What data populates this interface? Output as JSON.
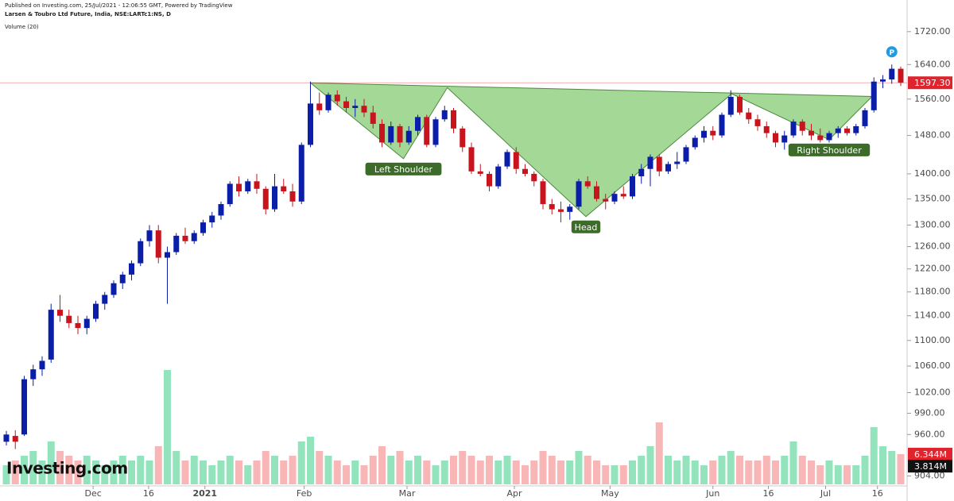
{
  "chart_data": {
    "type": "candlestick",
    "published": "Published on Investing.com, 25/Jul/2021 - 12:06:55 GMT, Powered by TradingView",
    "title": "Larsen & Toubro Ltd Future, India, NSE:LARTc1:NS, D",
    "volume_title": "Volume (20)",
    "logo": "Investing.com",
    "marker": "P",
    "log_scale": true,
    "ylim": [
      883,
      1780
    ],
    "yticks": [
      {
        "value": 1720,
        "label": "1720.00"
      },
      {
        "value": 1640,
        "label": "1640.00"
      },
      {
        "value": 1560,
        "label": "1560.00"
      },
      {
        "value": 1480,
        "label": "1480.00"
      },
      {
        "value": 1400,
        "label": "1400.00"
      },
      {
        "value": 1350,
        "label": "1350.00"
      },
      {
        "value": 1300,
        "label": "1300.00"
      },
      {
        "value": 1260,
        "label": "1260.00"
      },
      {
        "value": 1220,
        "label": "1220.00"
      },
      {
        "value": 1180,
        "label": "1180.00"
      },
      {
        "value": 1140,
        "label": "1140.00"
      },
      {
        "value": 1100,
        "label": "1100.00"
      },
      {
        "value": 1060,
        "label": "1060.00"
      },
      {
        "value": 1020,
        "label": "1020.00"
      },
      {
        "value": 990,
        "label": "990.00"
      },
      {
        "value": 960,
        "label": "960.00"
      },
      {
        "value": 904,
        "label": "904.00"
      }
    ],
    "xticks": [
      {
        "value": 9.7,
        "label": "Dec"
      },
      {
        "value": 15.9,
        "label": "16"
      },
      {
        "value": 22.2,
        "label": "2021"
      },
      {
        "value": 33.3,
        "label": "Feb"
      },
      {
        "value": 44.8,
        "label": "Mar"
      },
      {
        "value": 56.8,
        "label": "Apr"
      },
      {
        "value": 67.5,
        "label": "May"
      },
      {
        "value": 79,
        "label": "Jun"
      },
      {
        "value": 85.2,
        "label": "16"
      },
      {
        "value": 91.6,
        "label": "Jul"
      },
      {
        "value": 97.4,
        "label": "16"
      }
    ],
    "up_color": "#0b1ea8",
    "down_color": "#c8141c",
    "vol_up_color": "#93e4bd",
    "vol_down_color": "#f8b6b6",
    "last_price": {
      "value": 1597.3,
      "label": "1597.30",
      "color": "#e0242d"
    },
    "volume_ylim": [
      0,
      25
    ],
    "last_volume": {
      "value": 6.344,
      "label": "6.344M"
    },
    "volume_ma": {
      "value": 3.814,
      "label": "3.814M"
    },
    "ohlc": [
      [
        950,
        965,
        945,
        960
      ],
      [
        958,
        966,
        940,
        950
      ],
      [
        960,
        1045,
        958,
        1040
      ],
      [
        1040,
        1062,
        1030,
        1055
      ],
      [
        1055,
        1075,
        1045,
        1068
      ],
      [
        1070,
        1160,
        1065,
        1150
      ],
      [
        1150,
        1175,
        1130,
        1140
      ],
      [
        1140,
        1150,
        1120,
        1128
      ],
      [
        1128,
        1140,
        1110,
        1120
      ],
      [
        1120,
        1140,
        1110,
        1135
      ],
      [
        1135,
        1165,
        1130,
        1160
      ],
      [
        1160,
        1180,
        1150,
        1175
      ],
      [
        1175,
        1200,
        1170,
        1195
      ],
      [
        1195,
        1215,
        1185,
        1210
      ],
      [
        1210,
        1235,
        1200,
        1230
      ],
      [
        1230,
        1275,
        1225,
        1270
      ],
      [
        1270,
        1300,
        1260,
        1290
      ],
      [
        1290,
        1300,
        1230,
        1240
      ],
      [
        1240,
        1260,
        1160,
        1250
      ],
      [
        1250,
        1285,
        1245,
        1280
      ],
      [
        1280,
        1295,
        1265,
        1270
      ],
      [
        1270,
        1290,
        1265,
        1285
      ],
      [
        1285,
        1310,
        1280,
        1305
      ],
      [
        1305,
        1325,
        1295,
        1318
      ],
      [
        1318,
        1345,
        1310,
        1340
      ],
      [
        1340,
        1385,
        1335,
        1380
      ],
      [
        1380,
        1395,
        1355,
        1365
      ],
      [
        1365,
        1390,
        1360,
        1385
      ],
      [
        1385,
        1400,
        1360,
        1370
      ],
      [
        1370,
        1375,
        1320,
        1330
      ],
      [
        1330,
        1400,
        1325,
        1375
      ],
      [
        1375,
        1390,
        1360,
        1365
      ],
      [
        1365,
        1380,
        1335,
        1345
      ],
      [
        1345,
        1465,
        1340,
        1460
      ],
      [
        1460,
        1600,
        1455,
        1550
      ],
      [
        1550,
        1575,
        1525,
        1535
      ],
      [
        1535,
        1575,
        1530,
        1570
      ],
      [
        1570,
        1580,
        1545,
        1555
      ],
      [
        1555,
        1565,
        1530,
        1540
      ],
      [
        1540,
        1560,
        1520,
        1545
      ],
      [
        1545,
        1560,
        1520,
        1530
      ],
      [
        1530,
        1545,
        1495,
        1505
      ],
      [
        1505,
        1515,
        1455,
        1465
      ],
      [
        1465,
        1510,
        1460,
        1500
      ],
      [
        1500,
        1505,
        1455,
        1465
      ],
      [
        1465,
        1500,
        1460,
        1490
      ],
      [
        1490,
        1525,
        1480,
        1520
      ],
      [
        1520,
        1525,
        1455,
        1460
      ],
      [
        1460,
        1520,
        1455,
        1515
      ],
      [
        1515,
        1545,
        1510,
        1535
      ],
      [
        1535,
        1540,
        1485,
        1495
      ],
      [
        1495,
        1500,
        1445,
        1455
      ],
      [
        1455,
        1465,
        1400,
        1405
      ],
      [
        1405,
        1420,
        1395,
        1400
      ],
      [
        1400,
        1405,
        1365,
        1375
      ],
      [
        1375,
        1420,
        1370,
        1415
      ],
      [
        1415,
        1450,
        1410,
        1445
      ],
      [
        1445,
        1455,
        1400,
        1410
      ],
      [
        1410,
        1420,
        1395,
        1400
      ],
      [
        1400,
        1405,
        1375,
        1385
      ],
      [
        1385,
        1390,
        1330,
        1340
      ],
      [
        1340,
        1350,
        1320,
        1330
      ],
      [
        1330,
        1345,
        1305,
        1325
      ],
      [
        1325,
        1340,
        1310,
        1335
      ],
      [
        1335,
        1390,
        1330,
        1385
      ],
      [
        1385,
        1395,
        1370,
        1375
      ],
      [
        1375,
        1385,
        1345,
        1350
      ],
      [
        1350,
        1360,
        1330,
        1345
      ],
      [
        1345,
        1365,
        1340,
        1360
      ],
      [
        1360,
        1375,
        1350,
        1355
      ],
      [
        1355,
        1400,
        1350,
        1395
      ],
      [
        1395,
        1420,
        1380,
        1410
      ],
      [
        1410,
        1440,
        1375,
        1435
      ],
      [
        1435,
        1440,
        1395,
        1405
      ],
      [
        1405,
        1425,
        1400,
        1420
      ],
      [
        1420,
        1445,
        1410,
        1425
      ],
      [
        1425,
        1460,
        1420,
        1455
      ],
      [
        1455,
        1480,
        1450,
        1475
      ],
      [
        1475,
        1500,
        1465,
        1490
      ],
      [
        1490,
        1500,
        1470,
        1480
      ],
      [
        1480,
        1530,
        1475,
        1525
      ],
      [
        1525,
        1580,
        1520,
        1565
      ],
      [
        1565,
        1570,
        1525,
        1530
      ],
      [
        1530,
        1540,
        1505,
        1515
      ],
      [
        1515,
        1525,
        1490,
        1500
      ],
      [
        1500,
        1510,
        1475,
        1485
      ],
      [
        1485,
        1490,
        1455,
        1465
      ],
      [
        1465,
        1490,
        1450,
        1480
      ],
      [
        1480,
        1515,
        1475,
        1510
      ],
      [
        1510,
        1515,
        1480,
        1490
      ],
      [
        1490,
        1505,
        1470,
        1480
      ],
      [
        1480,
        1495,
        1465,
        1470
      ],
      [
        1470,
        1490,
        1465,
        1485
      ],
      [
        1485,
        1500,
        1475,
        1495
      ],
      [
        1495,
        1500,
        1480,
        1485
      ],
      [
        1485,
        1505,
        1480,
        1500
      ],
      [
        1500,
        1540,
        1495,
        1535
      ],
      [
        1535,
        1610,
        1530,
        1600
      ],
      [
        1600,
        1615,
        1585,
        1605
      ],
      [
        1605,
        1640,
        1595,
        1630
      ],
      [
        1630,
        1635,
        1590,
        1597.3
      ]
    ],
    "volume": [
      4,
      5,
      6,
      7,
      5,
      9,
      7,
      6,
      5,
      6,
      5,
      4,
      5,
      6,
      5,
      6,
      5,
      8,
      24,
      7,
      5,
      6,
      5,
      4,
      5,
      6,
      5,
      4,
      5,
      7,
      6,
      5,
      6,
      9,
      10,
      7,
      6,
      5,
      4,
      5,
      4,
      6,
      8,
      6,
      7,
      5,
      6,
      5,
      4,
      5,
      6,
      7,
      6,
      5,
      6,
      5,
      6,
      5,
      4,
      5,
      7,
      6,
      5,
      5,
      7,
      6,
      5,
      4,
      4,
      4,
      5,
      6,
      8,
      13,
      6,
      5,
      6,
      5,
      4,
      5,
      6,
      7,
      6,
      5,
      5,
      6,
      5,
      6,
      9,
      6,
      5,
      4,
      5,
      4,
      4,
      4,
      6,
      12,
      8,
      7,
      6.344
    ],
    "pattern": {
      "color": "#9fd690",
      "points": [
        [
          34,
          1597
        ],
        [
          44.4,
          1431
        ],
        [
          49.3,
          1586
        ],
        [
          64.8,
          1316
        ],
        [
          81.1,
          1572
        ],
        [
          92,
          1471
        ],
        [
          96.8,
          1566
        ]
      ],
      "labels": [
        {
          "text": "Left Shoulder",
          "vertex": 1
        },
        {
          "text": "Head",
          "vertex": 3
        },
        {
          "text": "Right Shoulder",
          "vertex": 5
        }
      ]
    }
  }
}
